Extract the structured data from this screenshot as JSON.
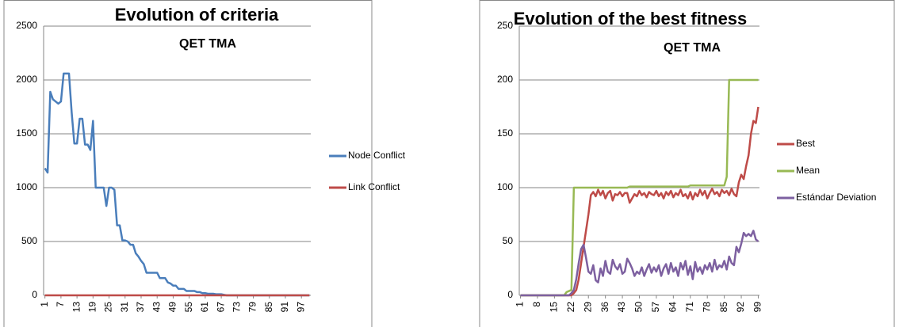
{
  "chart_data": [
    {
      "type": "line",
      "title": "Evolution of criteria",
      "subtitle": "QET TMA",
      "x": [
        1,
        2,
        3,
        4,
        5,
        6,
        7,
        8,
        9,
        10,
        11,
        12,
        13,
        14,
        15,
        16,
        17,
        18,
        19,
        20,
        21,
        22,
        23,
        24,
        25,
        26,
        27,
        28,
        29,
        30,
        31,
        32,
        33,
        34,
        35,
        36,
        37,
        38,
        39,
        40,
        41,
        42,
        43,
        44,
        45,
        46,
        47,
        48,
        49,
        50,
        51,
        52,
        53,
        54,
        55,
        56,
        57,
        58,
        59,
        60,
        61,
        62,
        63,
        64,
        65,
        66,
        67,
        68,
        69,
        70,
        71,
        72,
        73,
        74,
        75,
        76,
        77,
        78,
        79,
        80,
        81,
        82,
        83,
        84,
        85,
        86,
        87,
        88,
        89,
        90,
        91,
        92,
        93,
        94,
        95,
        96,
        97,
        98,
        99,
        100
      ],
      "xlim": [
        0.5,
        100.5
      ],
      "xticks": [
        1,
        7,
        13,
        19,
        25,
        31,
        37,
        43,
        49,
        55,
        61,
        67,
        73,
        79,
        85,
        91,
        97
      ],
      "ylim": [
        0,
        2500
      ],
      "yticks": [
        0,
        500,
        1000,
        1500,
        2000,
        2500
      ],
      "grid": true,
      "legend": "right",
      "series": [
        {
          "name": "Node Conflict",
          "color": "#4a7ebb",
          "values": [
            1180,
            1140,
            1890,
            1820,
            1800,
            1780,
            1800,
            2060,
            2060,
            2060,
            1700,
            1410,
            1410,
            1640,
            1640,
            1400,
            1400,
            1350,
            1620,
            1000,
            1000,
            1000,
            1000,
            830,
            1000,
            1000,
            980,
            650,
            650,
            510,
            510,
            500,
            470,
            470,
            390,
            360,
            320,
            290,
            210,
            210,
            210,
            210,
            210,
            160,
            160,
            160,
            120,
            110,
            90,
            90,
            60,
            60,
            60,
            40,
            40,
            40,
            40,
            30,
            30,
            20,
            20,
            15,
            15,
            15,
            10,
            10,
            10,
            5,
            0,
            0,
            0,
            0,
            0,
            0,
            0,
            0,
            0,
            0,
            0,
            0,
            0,
            0,
            0,
            0,
            0,
            0,
            0,
            0,
            0,
            0,
            0,
            0,
            0,
            0,
            0,
            0,
            0,
            0,
            0,
            0
          ]
        },
        {
          "name": "Link Conflict",
          "color": "#be4b48",
          "values": [
            0,
            0,
            0,
            0,
            0,
            0,
            0,
            0,
            0,
            0,
            0,
            0,
            0,
            0,
            0,
            0,
            0,
            0,
            0,
            0,
            0,
            0,
            0,
            0,
            0,
            0,
            0,
            0,
            0,
            0,
            0,
            0,
            0,
            0,
            0,
            0,
            0,
            0,
            0,
            0,
            0,
            0,
            0,
            0,
            0,
            0,
            0,
            0,
            0,
            0,
            0,
            0,
            0,
            0,
            0,
            0,
            0,
            0,
            0,
            0,
            0,
            0,
            0,
            0,
            0,
            0,
            0,
            0,
            0,
            0,
            0,
            0,
            0,
            0,
            0,
            0,
            0,
            0,
            0,
            0,
            0,
            0,
            0,
            0,
            0,
            0,
            0,
            0,
            0,
            0,
            0,
            0,
            0,
            0,
            0,
            0,
            0,
            0,
            0,
            0
          ]
        }
      ]
    },
    {
      "type": "line",
      "title": "Evolution of the best fitness",
      "subtitle": "QET TMA",
      "x": [
        1,
        2,
        3,
        4,
        5,
        6,
        7,
        8,
        9,
        10,
        11,
        12,
        13,
        14,
        15,
        16,
        17,
        18,
        19,
        20,
        21,
        22,
        23,
        24,
        25,
        26,
        27,
        28,
        29,
        30,
        31,
        32,
        33,
        34,
        35,
        36,
        37,
        38,
        39,
        40,
        41,
        42,
        43,
        44,
        45,
        46,
        47,
        48,
        49,
        50,
        51,
        52,
        53,
        54,
        55,
        56,
        57,
        58,
        59,
        60,
        61,
        62,
        63,
        64,
        65,
        66,
        67,
        68,
        69,
        70,
        71,
        72,
        73,
        74,
        75,
        76,
        77,
        78,
        79,
        80,
        81,
        82,
        83,
        84,
        85,
        86,
        87,
        88,
        89,
        90,
        91,
        92,
        93,
        94,
        95,
        96,
        97,
        98,
        99
      ],
      "xlim": [
        0.5,
        99.5
      ],
      "xticks": [
        1,
        8,
        15,
        22,
        29,
        36,
        43,
        50,
        57,
        64,
        71,
        78,
        85,
        92,
        99
      ],
      "ylim": [
        0,
        250
      ],
      "yticks": [
        0,
        50,
        100,
        150,
        200,
        250
      ],
      "grid": true,
      "legend": "right",
      "series": [
        {
          "name": "Best",
          "color": "#be4b48",
          "values": [
            0,
            0,
            0,
            0,
            0,
            0,
            0,
            0,
            0,
            0,
            0,
            0,
            0,
            0,
            0,
            0,
            0,
            0,
            0,
            0,
            0,
            0,
            2,
            5,
            15,
            30,
            45,
            60,
            75,
            93,
            96,
            92,
            98,
            93,
            97,
            90,
            95,
            97,
            88,
            94,
            93,
            96,
            92,
            95,
            95,
            86,
            90,
            94,
            92,
            97,
            93,
            95,
            91,
            96,
            94,
            93,
            97,
            92,
            95,
            90,
            96,
            93,
            97,
            91,
            95,
            93,
            98,
            92,
            94,
            90,
            96,
            89,
            95,
            92,
            98,
            93,
            97,
            90,
            95,
            99,
            94,
            96,
            92,
            98,
            95,
            97,
            93,
            99,
            94,
            92,
            105,
            112,
            108,
            120,
            130,
            150,
            162,
            160,
            175
          ]
        },
        {
          "name": "Mean",
          "color": "#98b954",
          "values": [
            0,
            0,
            0,
            0,
            0,
            0,
            0,
            0,
            0,
            0,
            0,
            0,
            0,
            0,
            0,
            0,
            0,
            0,
            0,
            3,
            4,
            5,
            100,
            100,
            100,
            100,
            100,
            100,
            100,
            100,
            100,
            100,
            100,
            100,
            100,
            100,
            100,
            100,
            100,
            100,
            100,
            100,
            100,
            100,
            100,
            101,
            101,
            101,
            101,
            101,
            101,
            101,
            101,
            101,
            101,
            101,
            101,
            101,
            101,
            101,
            101,
            101,
            101,
            101,
            101,
            101,
            101,
            101,
            101,
            101,
            102,
            102,
            102,
            102,
            102,
            102,
            102,
            102,
            102,
            102,
            102,
            102,
            102,
            102,
            102,
            110,
            200,
            200,
            200,
            200,
            200,
            200,
            200,
            200,
            200,
            200,
            200,
            200,
            200
          ]
        },
        {
          "name": "Estándar Deviation",
          "color": "#7d60a0",
          "values": [
            0,
            0,
            0,
            0,
            0,
            0,
            0,
            0,
            0,
            0,
            0,
            0,
            0,
            0,
            0,
            0,
            0,
            0,
            0,
            0,
            0,
            2,
            5,
            15,
            30,
            43,
            47,
            35,
            22,
            20,
            28,
            14,
            12,
            25,
            18,
            32,
            22,
            20,
            33,
            27,
            24,
            29,
            20,
            22,
            34,
            30,
            25,
            18,
            22,
            20,
            26,
            18,
            24,
            29,
            21,
            26,
            22,
            28,
            18,
            25,
            29,
            20,
            30,
            22,
            26,
            18,
            30,
            24,
            32,
            19,
            27,
            15,
            31,
            22,
            26,
            20,
            28,
            24,
            30,
            22,
            33,
            24,
            28,
            26,
            32,
            24,
            36,
            30,
            28,
            45,
            40,
            48,
            58,
            55,
            57,
            55,
            60,
            52,
            50
          ]
        }
      ]
    }
  ]
}
